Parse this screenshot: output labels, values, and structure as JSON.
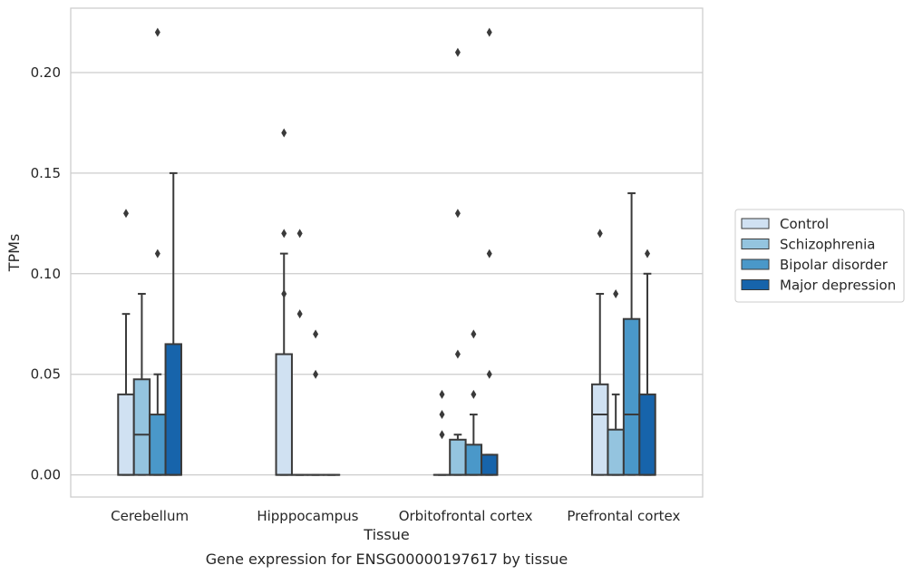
{
  "chart_data": {
    "type": "boxplot",
    "title": "Gene expression for ENSG00000197617 by tissue",
    "xlabel": "Tissue",
    "ylabel": "TPMs",
    "ylim": [
      -0.011,
      0.232
    ],
    "yticks": [
      0.0,
      0.05,
      0.1,
      0.15,
      0.2
    ],
    "ytick_labels": [
      "0.00",
      "0.05",
      "0.10",
      "0.15",
      "0.20"
    ],
    "grid": "horizontal",
    "legend_position": "right",
    "categories": [
      "Cerebellum",
      "Hipppocampus",
      "Orbitofrontal cortex",
      "Prefrontal cortex"
    ],
    "series": [
      {
        "name": "Control",
        "color": "#d0e1f2",
        "boxes": [
          {
            "q1": 0.0,
            "median": 0.0,
            "q3": 0.04,
            "whislo": 0.0,
            "whishi": 0.08,
            "fliers": [
              0.13
            ]
          },
          {
            "q1": 0.0,
            "median": 0.0,
            "q3": 0.06,
            "whislo": 0.0,
            "whishi": 0.11,
            "fliers": [
              0.17,
              0.12,
              0.09
            ]
          },
          {
            "q1": 0.0,
            "median": 0.0,
            "q3": 0.0,
            "whislo": 0.0,
            "whishi": 0.0,
            "fliers": [
              0.04,
              0.03,
              0.02
            ]
          },
          {
            "q1": 0.0,
            "median": 0.03,
            "q3": 0.045,
            "whislo": 0.0,
            "whishi": 0.09,
            "fliers": [
              0.12
            ]
          }
        ]
      },
      {
        "name": "Schizophrenia",
        "color": "#94c4df",
        "boxes": [
          {
            "q1": 0.0,
            "median": 0.02,
            "q3": 0.0475,
            "whislo": 0.0,
            "whishi": 0.09,
            "fliers": []
          },
          {
            "q1": 0.0,
            "median": 0.0,
            "q3": 0.0,
            "whislo": 0.0,
            "whishi": 0.0,
            "fliers": [
              0.12,
              0.08
            ]
          },
          {
            "q1": 0.0,
            "median": 0.0,
            "q3": 0.0175,
            "whislo": 0.0,
            "whishi": 0.02,
            "fliers": [
              0.21,
              0.13,
              0.06
            ]
          },
          {
            "q1": 0.0,
            "median": 0.0,
            "q3": 0.0225,
            "whislo": 0.0,
            "whishi": 0.04,
            "fliers": [
              0.09
            ]
          }
        ]
      },
      {
        "name": "Bipolar disorder",
        "color": "#4a98c9",
        "boxes": [
          {
            "q1": 0.0,
            "median": 0.0,
            "q3": 0.03,
            "whislo": 0.0,
            "whishi": 0.05,
            "fliers": [
              0.22,
              0.11
            ]
          },
          {
            "q1": 0.0,
            "median": 0.0,
            "q3": 0.0,
            "whislo": 0.0,
            "whishi": 0.0,
            "fliers": [
              0.07,
              0.05
            ]
          },
          {
            "q1": 0.0,
            "median": 0.0,
            "q3": 0.015,
            "whislo": 0.0,
            "whishi": 0.03,
            "fliers": [
              0.07,
              0.04
            ]
          },
          {
            "q1": 0.0,
            "median": 0.03,
            "q3": 0.0775,
            "whislo": 0.0,
            "whishi": 0.14,
            "fliers": []
          }
        ]
      },
      {
        "name": "Major depression",
        "color": "#1764ab",
        "boxes": [
          {
            "q1": 0.0,
            "median": 0.0,
            "q3": 0.065,
            "whislo": 0.0,
            "whishi": 0.15,
            "fliers": []
          },
          {
            "q1": 0.0,
            "median": 0.0,
            "q3": 0.0,
            "whislo": 0.0,
            "whishi": 0.0,
            "fliers": []
          },
          {
            "q1": 0.0,
            "median": 0.0,
            "q3": 0.01,
            "whislo": 0.0,
            "whishi": 0.01,
            "fliers": [
              0.22,
              0.11,
              0.05
            ]
          },
          {
            "q1": 0.0,
            "median": 0.0,
            "q3": 0.04,
            "whislo": 0.0,
            "whishi": 0.1,
            "fliers": [
              0.11
            ]
          }
        ]
      }
    ]
  }
}
